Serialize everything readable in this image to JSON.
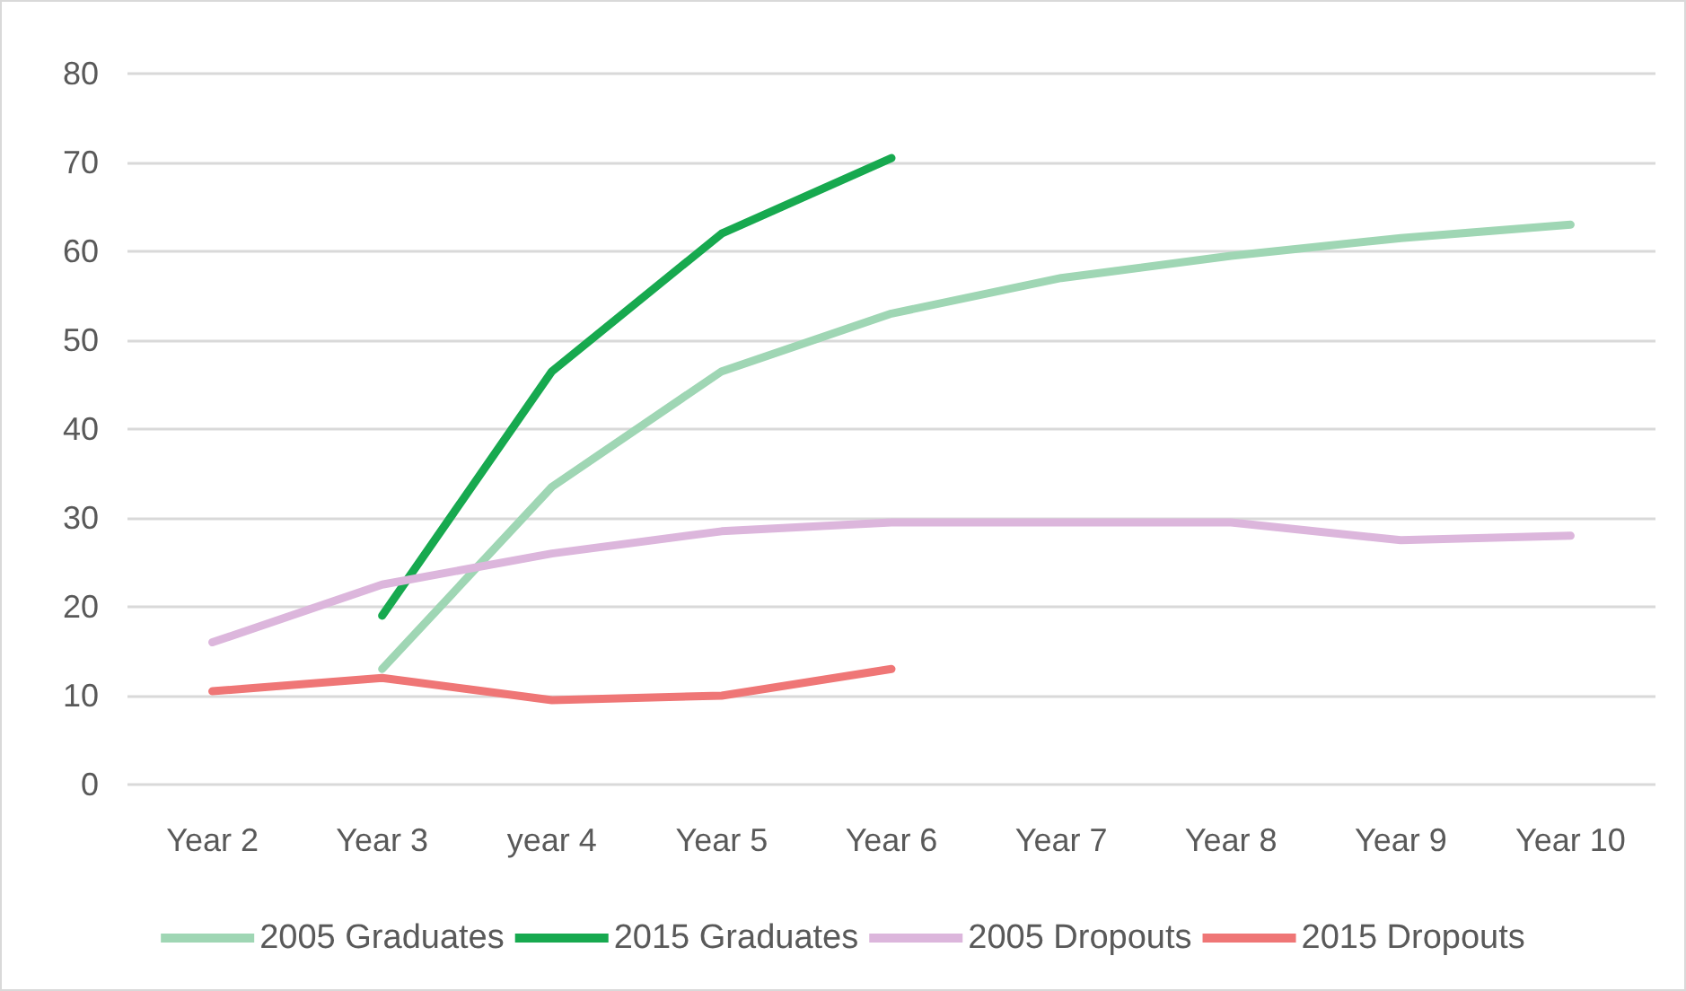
{
  "chart_data": {
    "type": "line",
    "categories": [
      "Year 2",
      "Year 3",
      "year 4",
      "Year 5",
      "Year 6",
      "Year 7",
      "Year 8",
      "Year 9",
      "Year 10"
    ],
    "series": [
      {
        "name": "2005 Graduates",
        "color": "#9fd6b4",
        "values": [
          null,
          13,
          33.5,
          46.5,
          53,
          57,
          59.5,
          61.5,
          63
        ]
      },
      {
        "name": "2015 Graduates",
        "color": "#17a94f",
        "values": [
          null,
          19,
          46.5,
          62,
          70.5,
          null,
          null,
          null,
          null
        ]
      },
      {
        "name": "2005 Dropouts",
        "color": "#dcb6dc",
        "values": [
          16,
          22.5,
          26,
          28.5,
          29.5,
          29.5,
          29.5,
          27.5,
          28
        ]
      },
      {
        "name": "2015 Dropouts",
        "color": "#ef7676",
        "values": [
          10.5,
          12,
          9.5,
          10,
          13,
          null,
          null,
          null,
          null
        ]
      }
    ],
    "ylim": [
      0,
      80
    ],
    "yticks": [
      0,
      10,
      20,
      30,
      40,
      50,
      60,
      70,
      80
    ],
    "grid": "y",
    "legend": "bottom",
    "marker": "none",
    "line_style": "solid"
  }
}
